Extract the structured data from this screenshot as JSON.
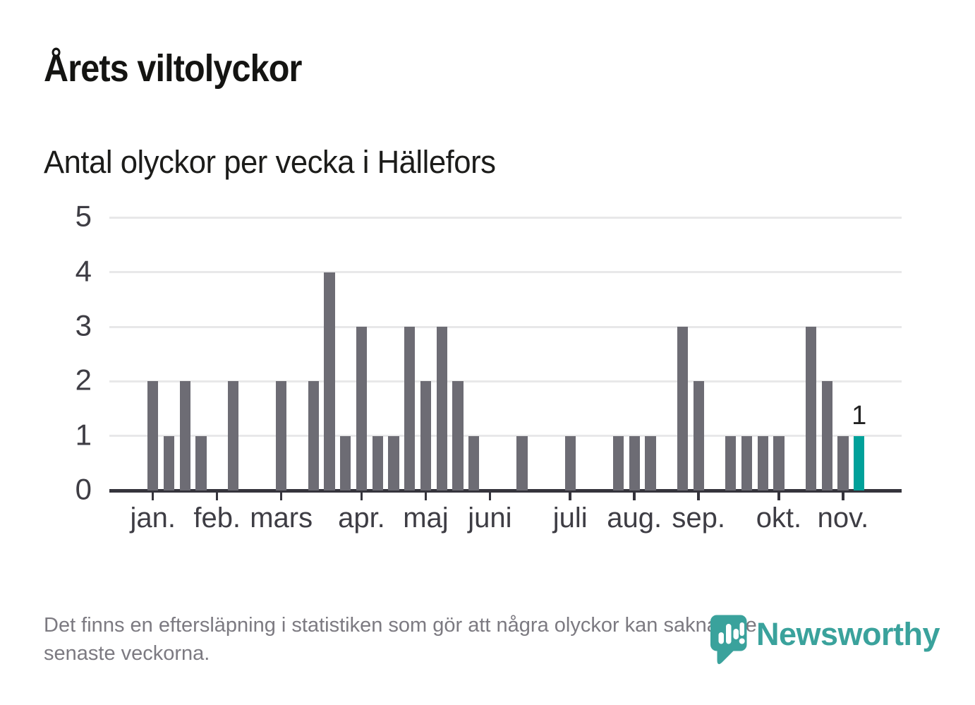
{
  "header": {
    "title": "Årets viltolyckor",
    "subtitle": "Antal olyckor per vecka i Hällefors"
  },
  "footer": {
    "line1": "Det finns en eftersläpning i statistiken som gör att några olyckor kan saknas de",
    "line2": "senaste veckorna."
  },
  "logo": {
    "text": "Newsworthy",
    "icon": "newsworthy-speech-bubble-bar-chart-icon",
    "color": "#3aa29c"
  },
  "colors": {
    "bar_gray": "#6d6c74",
    "accent_teal": "#00a19a",
    "gridline": "#e8e8e9",
    "axis": "#35343c",
    "footer_text": "#7c7a81"
  },
  "chart_data": {
    "type": "bar",
    "title": "Årets viltolyckor",
    "subtitle": "Antal olyckor per vecka i Hällefors",
    "x_unit": "week of year",
    "weeks": [
      1,
      2,
      3,
      4,
      5,
      6,
      7,
      8,
      9,
      10,
      11,
      12,
      13,
      14,
      15,
      16,
      17,
      18,
      19,
      20,
      21,
      22,
      23,
      24,
      25,
      26,
      27,
      28,
      29,
      30,
      31,
      32,
      33,
      34,
      35,
      36,
      37,
      38,
      39,
      40,
      41,
      42,
      43,
      44,
      45
    ],
    "values": [
      2,
      1,
      2,
      1,
      0,
      2,
      0,
      0,
      2,
      0,
      2,
      4,
      1,
      3,
      1,
      1,
      3,
      2,
      3,
      2,
      1,
      0,
      0,
      1,
      0,
      0,
      1,
      0,
      0,
      1,
      1,
      1,
      0,
      3,
      2,
      0,
      1,
      1,
      1,
      1,
      0,
      3,
      2,
      1,
      1
    ],
    "month_ticks": [
      {
        "label": "jan.",
        "week_index": 0
      },
      {
        "label": "feb.",
        "week_index": 4
      },
      {
        "label": "mars",
        "week_index": 8
      },
      {
        "label": "apr.",
        "week_index": 13
      },
      {
        "label": "maj",
        "week_index": 17
      },
      {
        "label": "juni",
        "week_index": 21
      },
      {
        "label": "juli",
        "week_index": 26
      },
      {
        "label": "aug.",
        "week_index": 30
      },
      {
        "label": "sep.",
        "week_index": 34
      },
      {
        "label": "okt.",
        "week_index": 39
      },
      {
        "label": "nov.",
        "week_index": 43
      }
    ],
    "y_ticks": [
      5,
      4,
      3,
      2,
      1,
      0
    ],
    "ylim": [
      0,
      5
    ],
    "grid": "horizontal",
    "legend": "none",
    "bar_color": "#6d6c74",
    "highlight": {
      "week_index": 44,
      "color": "#00a19a",
      "label": "1"
    }
  }
}
